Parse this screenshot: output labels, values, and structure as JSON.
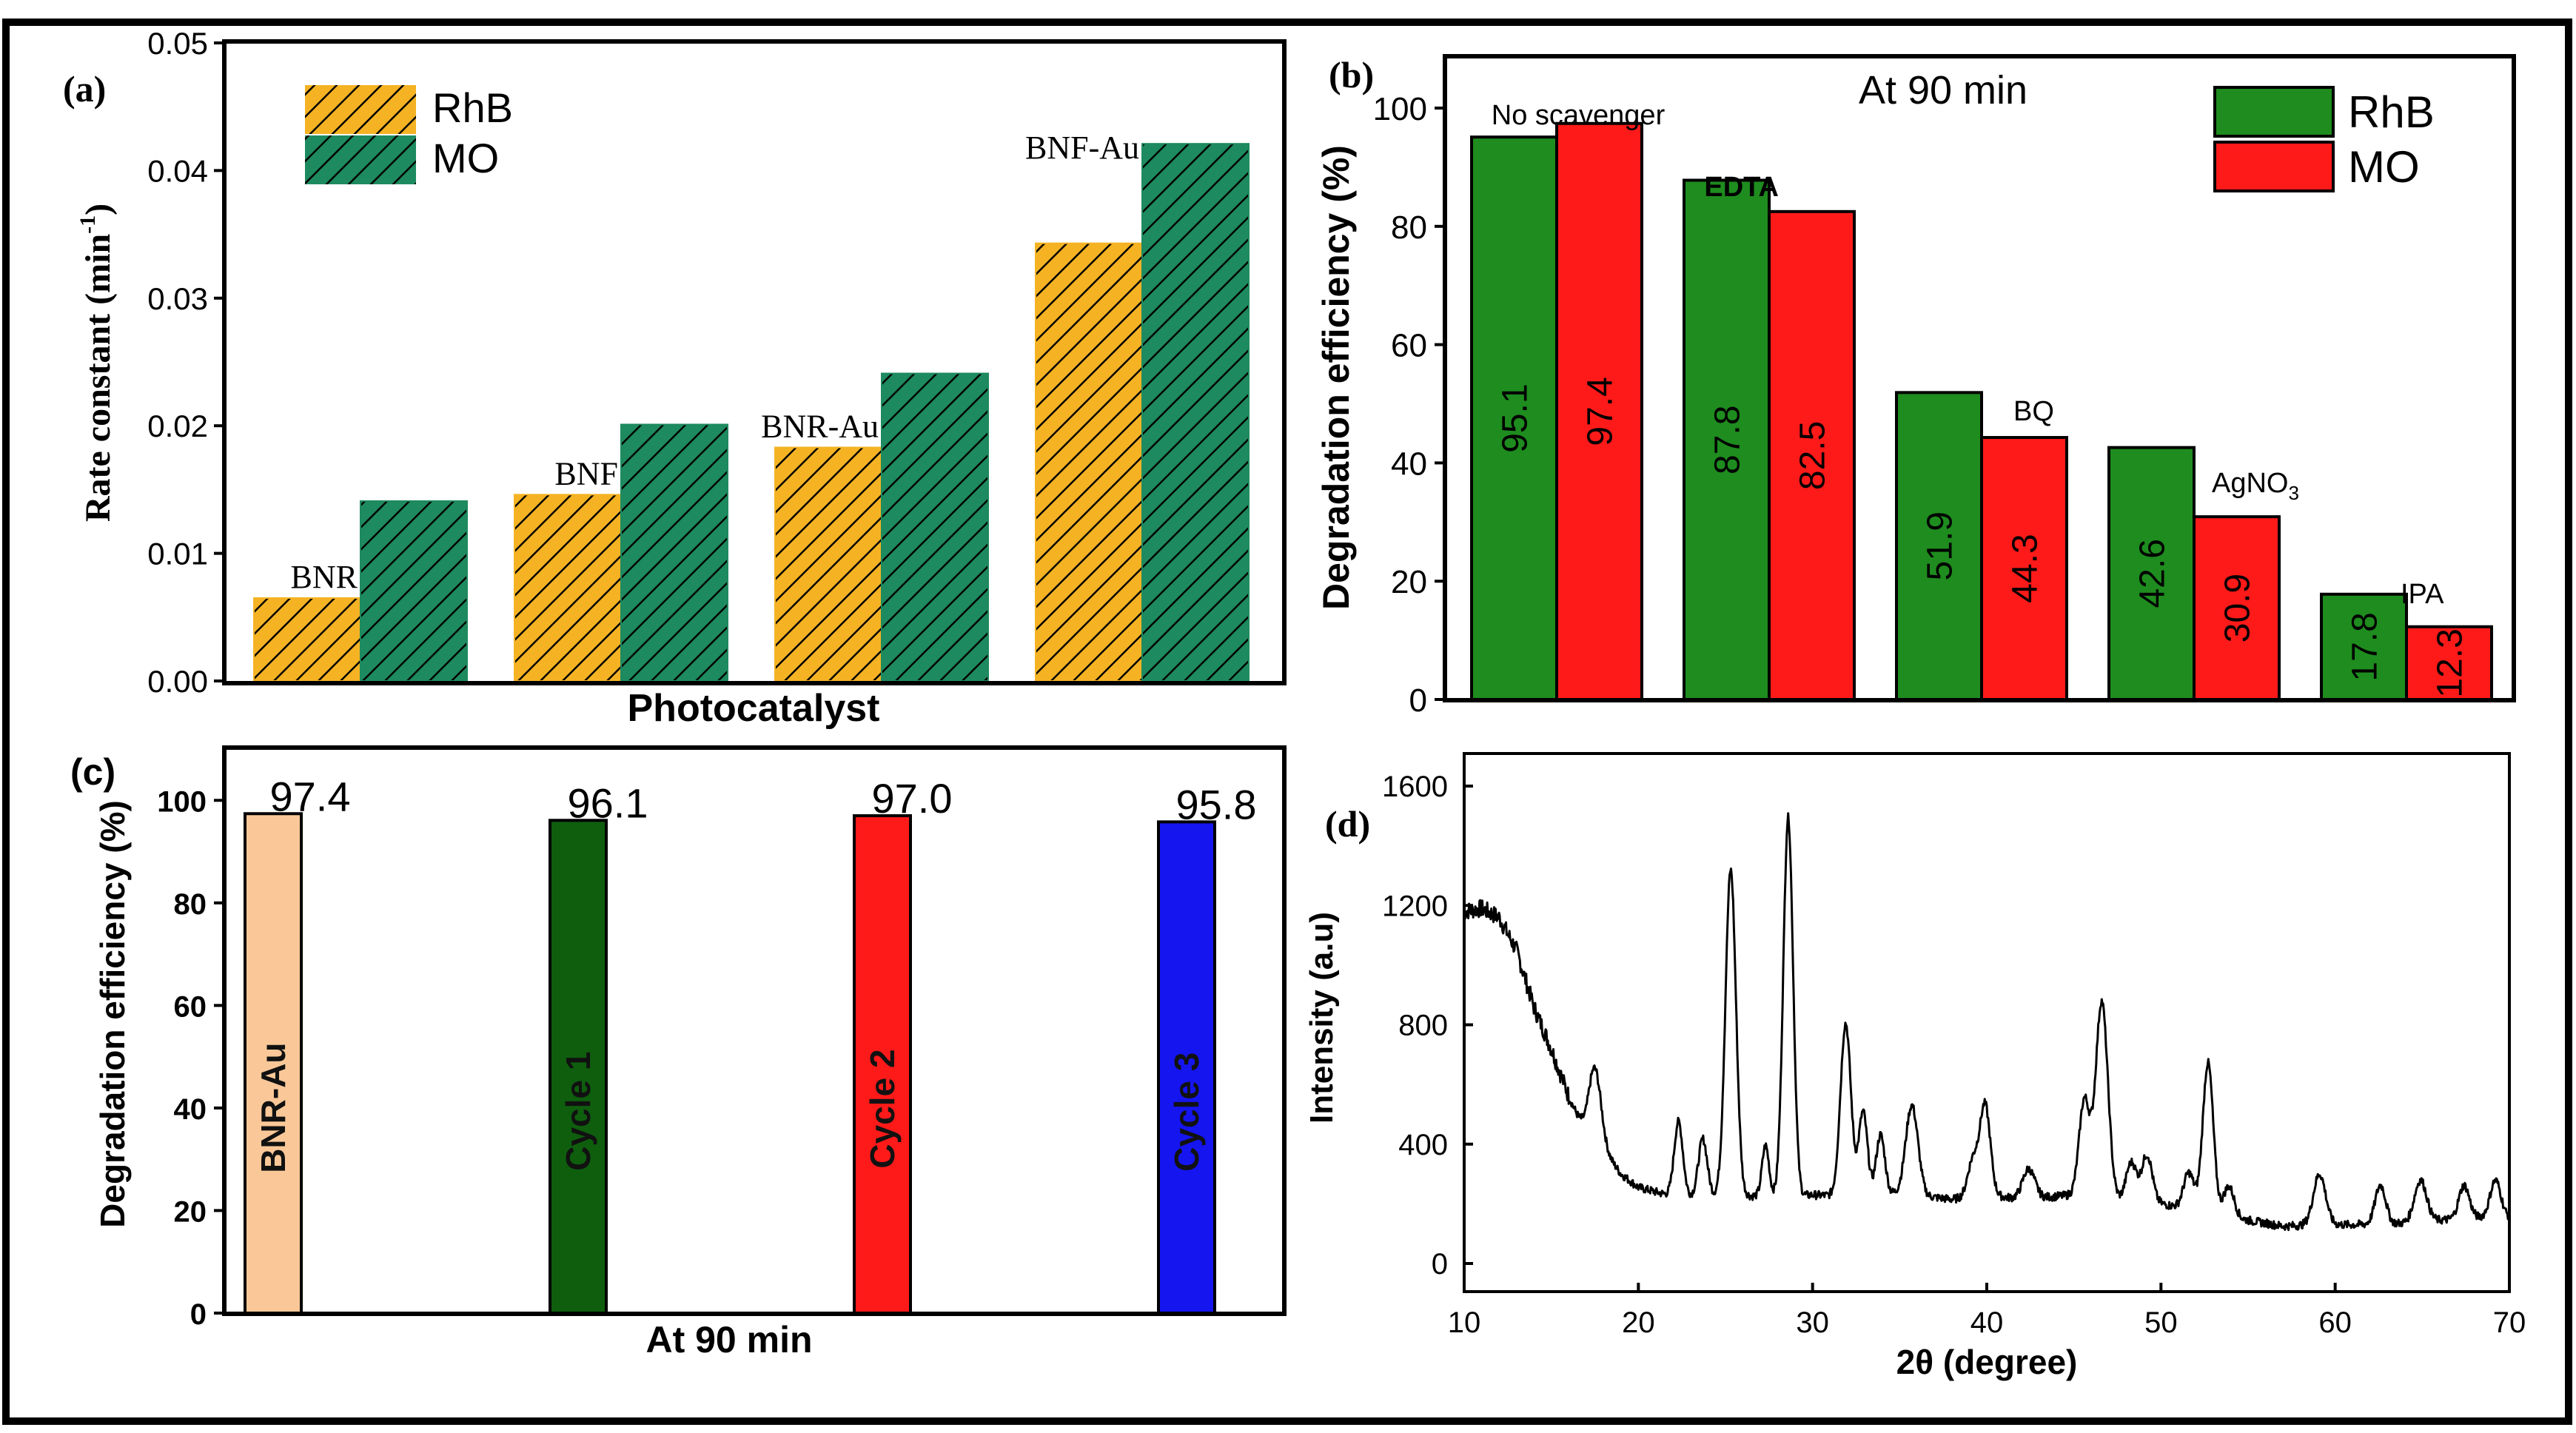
{
  "colors": {
    "rhb_a": "#F5B324",
    "mo_a": "#1E8A5F",
    "rhb_b": "#1E8C1E",
    "mo_b": "#FF1A1A",
    "c_bars": [
      "#FAC898",
      "#0E5E0E",
      "#FF1A1A",
      "#1515F0"
    ],
    "frame": "#000000"
  },
  "chart_data": [
    {
      "id": "a",
      "type": "bar",
      "panel_label": "(a)",
      "xlabel": "Photocatalyst",
      "ylabel": "Rate constant (min",
      "ylabel_sup": "-1",
      "ylabel_end": ")",
      "ylim": [
        0,
        0.05
      ],
      "yticks": [
        "0.00",
        "0.01",
        "0.02",
        "0.03",
        "0.04",
        "0.05"
      ],
      "categories": [
        "BNR",
        "BNF",
        "BNR-Au",
        "BNF-Au"
      ],
      "series": [
        {
          "name": "RhB",
          "values": [
            0.0065,
            0.0146,
            0.0183,
            0.0343
          ]
        },
        {
          "name": "MO",
          "values": [
            0.0141,
            0.0201,
            0.0241,
            0.0421
          ]
        }
      ],
      "legend": [
        "RhB",
        "MO"
      ],
      "legend_position": "top-left"
    },
    {
      "id": "b",
      "type": "bar",
      "panel_label": "(b)",
      "title": "At 90 min",
      "ylabel": "Degradation efficiency (%)",
      "ylim": [
        0,
        100
      ],
      "yticks": [
        "0",
        "20",
        "40",
        "60",
        "80",
        "100"
      ],
      "categories": [
        "No scavenger",
        "EDTA",
        "BQ",
        "AgNO",
        "IPA"
      ],
      "category_subscripts": [
        "",
        "",
        "",
        "3",
        ""
      ],
      "series": [
        {
          "name": "RhB",
          "values": [
            95.1,
            87.8,
            51.9,
            42.6,
            17.8
          ],
          "labels": [
            "95.1",
            "87.8",
            "51.9",
            "42.6",
            "17.8"
          ]
        },
        {
          "name": "MO",
          "values": [
            97.4,
            82.5,
            44.3,
            30.9,
            12.3
          ],
          "labels": [
            "97.4",
            "82.5",
            "44.3",
            "30.9",
            "12.3"
          ]
        }
      ],
      "legend": [
        "RhB",
        "MO"
      ],
      "legend_position": "top-right"
    },
    {
      "id": "c",
      "type": "bar",
      "panel_label": "(c)",
      "xlabel": "At 90 min",
      "ylabel": "Degradation efficiency (%)",
      "ylim": [
        0,
        110
      ],
      "yticks": [
        "0",
        "20",
        "40",
        "60",
        "80",
        "100"
      ],
      "categories": [
        "BNR-Au",
        "Cycle 1",
        "Cycle 2",
        "Cycle 3"
      ],
      "values": [
        97.4,
        96.1,
        97.0,
        95.8
      ],
      "value_labels": [
        "97.4",
        "96.1",
        "97.0",
        "95.8"
      ]
    },
    {
      "id": "d",
      "type": "line",
      "panel_label": "(d)",
      "xlabel": "2θ (degree)",
      "ylabel": "Intensity (a.u)",
      "xlim": [
        10,
        70
      ],
      "ylim": [
        -100,
        1700
      ],
      "xticks": [
        "10",
        "20",
        "30",
        "40",
        "50",
        "60",
        "70"
      ],
      "yticks": [
        "0",
        "400",
        "800",
        "1200",
        "1600"
      ],
      "baseline": [
        [
          10,
          1180
        ],
        [
          11,
          1190
        ],
        [
          12,
          1160
        ],
        [
          13,
          1050
        ],
        [
          14,
          860
        ],
        [
          15,
          720
        ],
        [
          16,
          560
        ],
        [
          17,
          430
        ],
        [
          18,
          380
        ],
        [
          19,
          300
        ],
        [
          20,
          255
        ],
        [
          22,
          225
        ],
        [
          25,
          230
        ],
        [
          27,
          225
        ],
        [
          29,
          225
        ],
        [
          30,
          230
        ],
        [
          32,
          225
        ],
        [
          35,
          235
        ],
        [
          38,
          215
        ],
        [
          40,
          230
        ],
        [
          42,
          215
        ],
        [
          45,
          230
        ],
        [
          48,
          210
        ],
        [
          50,
          200
        ],
        [
          53,
          170
        ],
        [
          55,
          145
        ],
        [
          57,
          125
        ],
        [
          59,
          130
        ],
        [
          61,
          130
        ],
        [
          64,
          135
        ],
        [
          67,
          150
        ],
        [
          69.5,
          160
        ],
        [
          70,
          155
        ]
      ],
      "peaks": [
        [
          17.5,
          250,
          0.35
        ],
        [
          22.3,
          250,
          0.25
        ],
        [
          23.7,
          190,
          0.25
        ],
        [
          25.3,
          1090,
          0.3
        ],
        [
          27.3,
          170,
          0.2
        ],
        [
          28.6,
          1270,
          0.28
        ],
        [
          31.9,
          580,
          0.3
        ],
        [
          32.9,
          280,
          0.25
        ],
        [
          33.9,
          200,
          0.25
        ],
        [
          35.7,
          300,
          0.35
        ],
        [
          39.2,
          120,
          0.3
        ],
        [
          39.9,
          300,
          0.3
        ],
        [
          42.4,
          100,
          0.35
        ],
        [
          45.6,
          320,
          0.3
        ],
        [
          46.6,
          660,
          0.35
        ],
        [
          48.3,
          130,
          0.3
        ],
        [
          49.2,
          160,
          0.3
        ],
        [
          51.6,
          120,
          0.3
        ],
        [
          52.7,
          500,
          0.3
        ],
        [
          53.9,
          100,
          0.3
        ],
        [
          59.1,
          170,
          0.35
        ],
        [
          62.6,
          130,
          0.3
        ],
        [
          64.9,
          140,
          0.35
        ],
        [
          67.4,
          110,
          0.3
        ],
        [
          69.2,
          120,
          0.3
        ]
      ]
    }
  ]
}
